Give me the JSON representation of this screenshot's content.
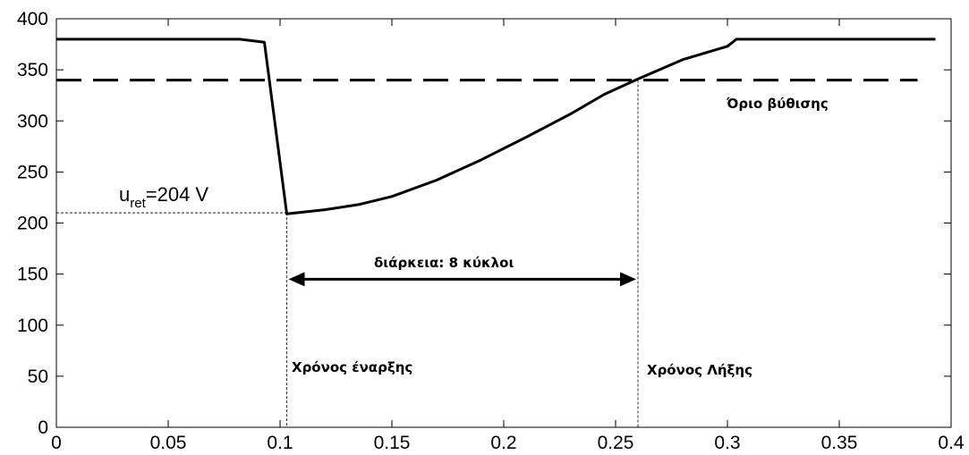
{
  "chart_data": {
    "type": "line",
    "xlim": [
      0,
      0.4
    ],
    "ylim": [
      0,
      400
    ],
    "x_ticks": [
      "0",
      "0.05",
      "0.1",
      "0.15",
      "0.2",
      "0.25",
      "0.3",
      "0.35",
      "0.4"
    ],
    "y_ticks": [
      "0",
      "50",
      "100",
      "150",
      "200",
      "250",
      "300",
      "350",
      "400"
    ],
    "grid": false,
    "series": [
      {
        "style": "solid",
        "points": [
          [
            0.0,
            380
          ],
          [
            0.082,
            380
          ],
          [
            0.093,
            377
          ],
          [
            0.103,
            209
          ],
          [
            0.12,
            213
          ],
          [
            0.135,
            218
          ],
          [
            0.15,
            226
          ],
          [
            0.17,
            242
          ],
          [
            0.19,
            262
          ],
          [
            0.21,
            284
          ],
          [
            0.23,
            307
          ],
          [
            0.245,
            326
          ],
          [
            0.26,
            341
          ],
          [
            0.28,
            360
          ],
          [
            0.3,
            373
          ],
          [
            0.304,
            380
          ],
          [
            0.393,
            380
          ]
        ]
      },
      {
        "style": "dashed",
        "points": [
          [
            0.0,
            340
          ],
          [
            0.385,
            340
          ]
        ]
      }
    ],
    "annotations": {
      "threshold_label": "Όριο βύθισης",
      "uret_main": "u",
      "uret_sub": "ret",
      "uret_value": "=204 V",
      "duration_label": "διάρκεια: 8 κύκλοι",
      "start_label": "Χρόνος έναρξης",
      "end_label": "Χρόνος Λήξης"
    },
    "reference_lines": {
      "uret_y": 210,
      "start_x": 0.103,
      "end_x": 0.26,
      "arrow_y": 145
    }
  }
}
